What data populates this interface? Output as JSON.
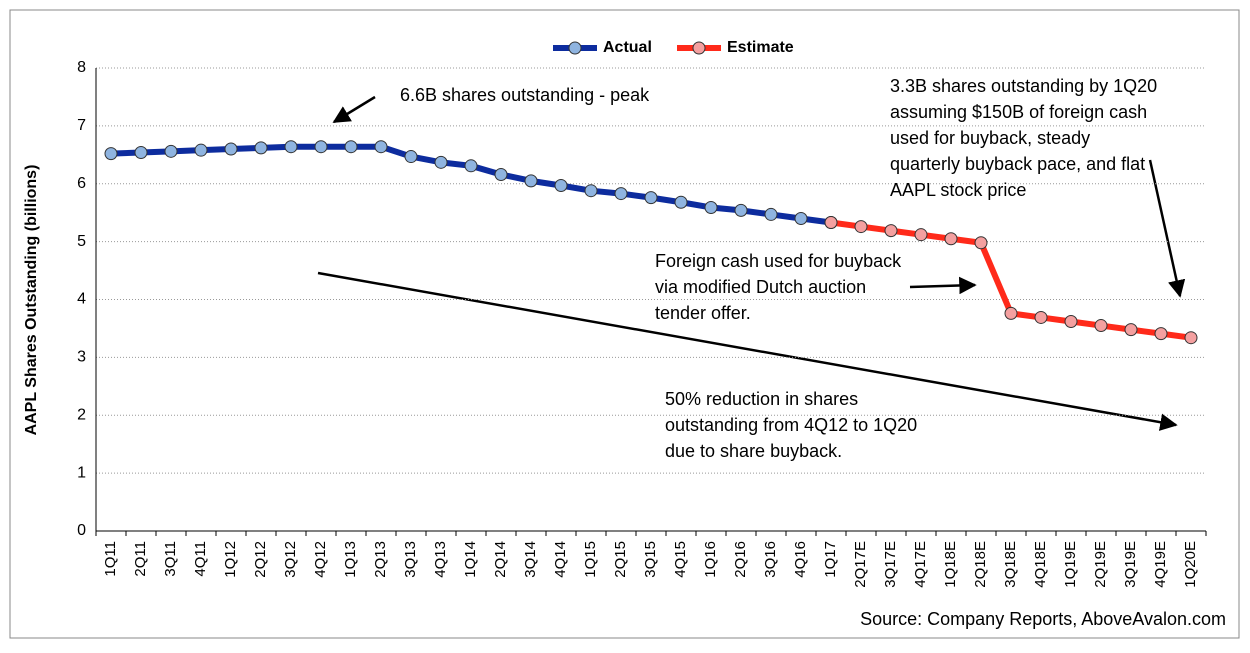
{
  "chart_data": {
    "type": "line",
    "categories": [
      "1Q11",
      "2Q11",
      "3Q11",
      "4Q11",
      "1Q12",
      "2Q12",
      "3Q12",
      "4Q12",
      "1Q13",
      "2Q13",
      "3Q13",
      "4Q13",
      "1Q14",
      "2Q14",
      "3Q14",
      "4Q14",
      "1Q15",
      "2Q15",
      "3Q15",
      "4Q15",
      "1Q16",
      "2Q16",
      "3Q16",
      "4Q16",
      "1Q17",
      "2Q17E",
      "3Q17E",
      "4Q17E",
      "1Q18E",
      "2Q18E",
      "3Q18E",
      "4Q18E",
      "1Q19E",
      "2Q19E",
      "3Q19E",
      "4Q19E",
      "1Q20E"
    ],
    "series": [
      {
        "name": "Actual",
        "color": "#0d2c9e",
        "marker_color": "#8fb4e0",
        "values": [
          6.52,
          6.54,
          6.56,
          6.58,
          6.6,
          6.62,
          6.64,
          6.64,
          6.64,
          6.64,
          6.47,
          6.37,
          6.31,
          6.16,
          6.05,
          5.97,
          5.88,
          5.83,
          5.76,
          5.68,
          5.59,
          5.54,
          5.47,
          5.4,
          5.33,
          null,
          null,
          null,
          null,
          null,
          null,
          null,
          null,
          null,
          null,
          null,
          null
        ]
      },
      {
        "name": "Estimate",
        "color": "#ff2a1a",
        "marker_color": "#f4a0a0",
        "values": [
          null,
          null,
          null,
          null,
          null,
          null,
          null,
          null,
          null,
          null,
          null,
          null,
          null,
          null,
          null,
          null,
          null,
          null,
          null,
          null,
          null,
          null,
          null,
          null,
          5.33,
          5.26,
          5.19,
          5.12,
          5.05,
          4.98,
          3.76,
          3.69,
          3.62,
          3.55,
          3.48,
          3.41,
          3.34
        ]
      }
    ],
    "y_label": "AAPL Shares Outstanding (billions)",
    "ylim": [
      0,
      8
    ],
    "yticks": [
      0,
      1,
      2,
      3,
      4,
      5,
      6,
      7,
      8
    ],
    "grid": true,
    "legend": "top",
    "annotations": [
      {
        "lines": [
          "6.6B shares outstanding - peak"
        ]
      },
      {
        "lines": [
          "3.3B shares outstanding by 1Q20",
          "assuming $150B of foreign cash",
          "used for buyback, steady",
          "quarterly buyback pace, and flat",
          "AAPL stock price"
        ]
      },
      {
        "lines": [
          "Foreign cash used for buyback",
          "via modified Dutch auction",
          "tender offer."
        ]
      },
      {
        "lines": [
          "50% reduction in shares",
          "outstanding from 4Q12 to 1Q20",
          "due to share buyback."
        ]
      }
    ],
    "source": "Source: Company Reports, AboveAvalon.com"
  }
}
